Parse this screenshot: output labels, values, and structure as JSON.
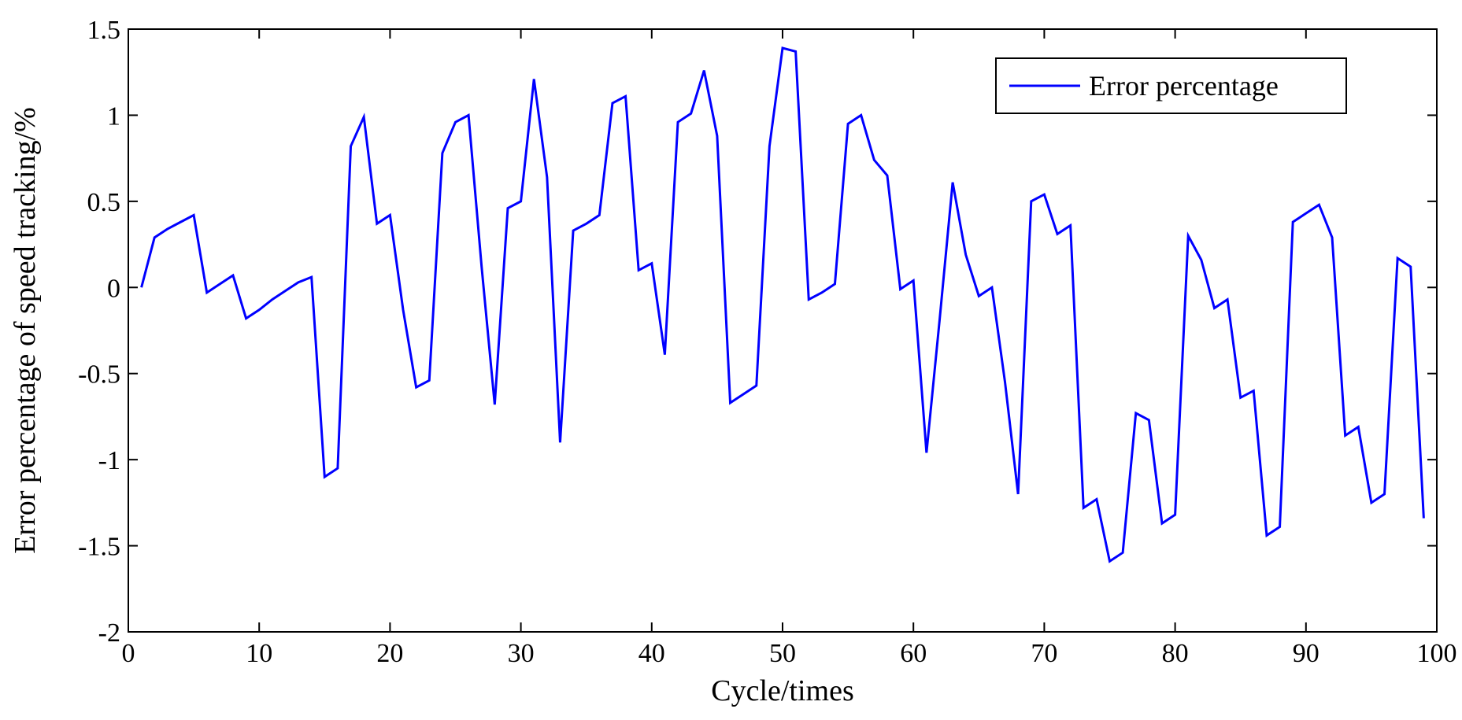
{
  "chart_data": {
    "type": "line",
    "title": "",
    "xlabel": "Cycle/times",
    "ylabel": "Error percentage of speed tracking/%",
    "xlim": [
      0,
      100
    ],
    "ylim": [
      -2,
      1.5
    ],
    "xticks": [
      0,
      10,
      20,
      30,
      40,
      50,
      60,
      70,
      80,
      90,
      100
    ],
    "yticks": [
      1.5,
      1,
      0.5,
      0,
      -0.5,
      -1,
      -1.5,
      -2
    ],
    "xtick_labels": [
      "0",
      "10",
      "20",
      "30",
      "40",
      "50",
      "60",
      "70",
      "80",
      "90",
      "100"
    ],
    "ytick_labels": [
      "1.5",
      "1",
      "0.5",
      "0",
      "-0.5",
      "-1",
      "-1.5",
      "-2"
    ],
    "grid": false,
    "legend_position": "top-right",
    "series": [
      {
        "name": "Error percentage",
        "color": "#0000ff",
        "x": [
          1,
          2,
          3,
          4,
          5,
          6,
          7,
          8,
          9,
          10,
          11,
          12,
          13,
          14,
          15,
          16,
          17,
          18,
          19,
          20,
          21,
          22,
          23,
          24,
          25,
          26,
          27,
          28,
          29,
          30,
          31,
          32,
          33,
          34,
          35,
          36,
          37,
          38,
          39,
          40,
          41,
          42,
          43,
          44,
          45,
          46,
          47,
          48,
          49,
          50,
          51,
          52,
          53,
          54,
          55,
          56,
          57,
          58,
          59,
          60,
          61,
          62,
          63,
          64,
          65,
          66,
          67,
          68,
          69,
          70,
          71,
          72,
          73,
          74,
          75,
          76,
          77,
          78,
          79,
          80,
          81,
          82,
          83,
          84,
          85,
          86,
          87,
          88,
          89,
          90,
          91,
          92,
          93,
          94,
          95,
          96,
          97,
          98,
          99
        ],
        "values": [
          0,
          0.29,
          0.34,
          0.38,
          0.42,
          -0.03,
          0.02,
          0.07,
          -0.18,
          -0.13,
          -0.07,
          -0.02,
          0.03,
          0.06,
          -1.1,
          -1.05,
          0.82,
          0.99,
          0.37,
          0.42,
          -0.13,
          -0.58,
          -0.54,
          0.78,
          0.96,
          1.0,
          0.12,
          -0.68,
          0.46,
          0.5,
          1.21,
          0.64,
          -0.9,
          0.33,
          0.37,
          0.42,
          1.07,
          1.11,
          0.1,
          0.14,
          -0.39,
          0.96,
          1.01,
          1.26,
          0.88,
          -0.67,
          -0.62,
          -0.57,
          0.82,
          1.39,
          1.37,
          -0.07,
          -0.03,
          0.02,
          0.95,
          1.0,
          0.74,
          0.65,
          -0.01,
          0.04,
          -0.96,
          -0.19,
          0.61,
          0.19,
          -0.05,
          0.0,
          -0.55,
          -1.2,
          0.5,
          0.54,
          0.31,
          0.36,
          -1.28,
          -1.23,
          -1.59,
          -1.54,
          -0.73,
          -0.77,
          -1.37,
          -1.32,
          0.3,
          0.16,
          -0.12,
          -0.07,
          -0.64,
          -0.6,
          -1.44,
          -1.39,
          0.38,
          0.43,
          0.48,
          0.29,
          -0.86,
          -0.81,
          -1.25,
          -1.2,
          0.17,
          0.12,
          -1.34
        ]
      }
    ]
  }
}
